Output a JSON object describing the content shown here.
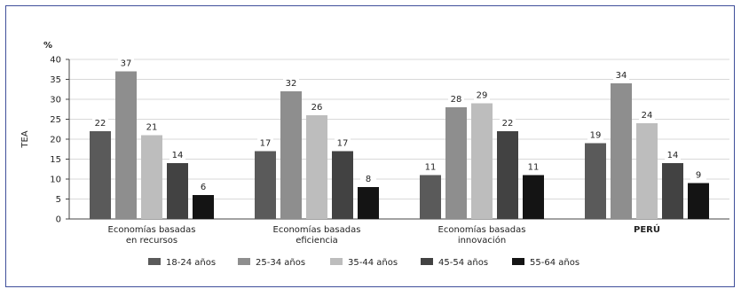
{
  "chart_data": {
    "type": "bar",
    "unit_label": "%",
    "ylabel": "TEA",
    "ylim": [
      0,
      40
    ],
    "yticks": [
      0,
      5,
      10,
      15,
      20,
      25,
      30,
      35,
      40
    ],
    "grid": true,
    "legend_position": "bottom",
    "categories": [
      {
        "lines": [
          "Economías basadas",
          "en recursos"
        ],
        "bold": false
      },
      {
        "lines": [
          "Economías basadas",
          "eficiencia"
        ],
        "bold": false
      },
      {
        "lines": [
          "Economías basadas",
          "innovación"
        ],
        "bold": false
      },
      {
        "lines": [
          "PERÚ"
        ],
        "bold": true
      }
    ],
    "series": [
      {
        "name": "18-24 años",
        "color": "#5a5a5a",
        "values": [
          22,
          17,
          11,
          19
        ]
      },
      {
        "name": "25-34 años",
        "color": "#8e8e8e",
        "values": [
          37,
          32,
          28,
          34
        ]
      },
      {
        "name": "35-44 años",
        "color": "#bdbdbd",
        "values": [
          21,
          26,
          29,
          24
        ]
      },
      {
        "name": "45-54 años",
        "color": "#424242",
        "values": [
          14,
          17,
          22,
          14
        ]
      },
      {
        "name": "55-64 años",
        "color": "#141414",
        "values": [
          6,
          8,
          11,
          9
        ]
      }
    ]
  }
}
